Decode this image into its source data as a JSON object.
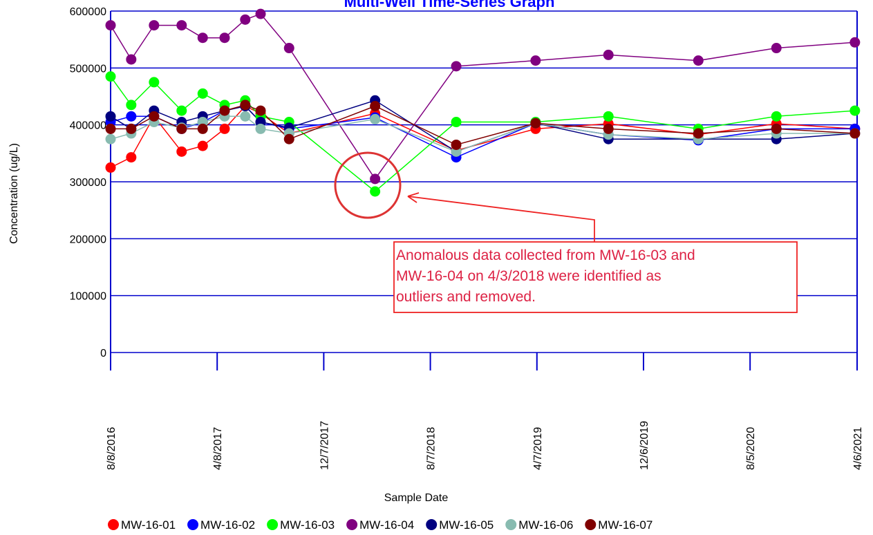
{
  "chart_data": {
    "type": "line",
    "title": "Multi-Well Time-Series Graph",
    "x_label": "Sample Date",
    "y_label": "Concentration (ug/L)",
    "x": [
      "8/8/2016",
      "9/24/2016",
      "11/15/2016",
      "1/17/2017",
      "3/6/2017",
      "4/25/2017",
      "6/11/2017",
      "7/16/2017",
      "9/19/2017",
      "4/3/2018",
      "10/5/2018",
      "4/4/2019",
      "9/17/2019",
      "4/9/2020",
      "10/4/2020",
      "4/1/2021"
    ],
    "xlim": [
      "8/8/2016",
      "4/6/2021"
    ],
    "xticks": [
      "8/8/2016",
      "4/8/2017",
      "12/7/2017",
      "8/7/2018",
      "4/7/2019",
      "12/6/2019",
      "8/5/2020",
      "4/6/2021"
    ],
    "ylim": [
      0,
      600000
    ],
    "yticks": [
      0,
      100000,
      200000,
      300000,
      400000,
      500000,
      600000
    ],
    "grid": true,
    "legend": "bottom",
    "series": [
      {
        "name": "MW-16-01",
        "color": "#ff0000",
        "values": [
          325000,
          343000,
          415000,
          353000,
          363000,
          393000,
          433000,
          420000,
          385000,
          420000,
          355000,
          393000,
          402000,
          383000,
          402000,
          393000
        ]
      },
      {
        "name": "MW-16-02",
        "color": "#0000ff",
        "values": [
          405000,
          415000,
          415000,
          393000,
          405000,
          425000,
          433000,
          405000,
          393000,
          413000,
          343000,
          403000,
          383000,
          373000,
          393000,
          393000
        ]
      },
      {
        "name": "MW-16-03",
        "color": "#00ff00",
        "values": [
          485000,
          435000,
          475000,
          425000,
          455000,
          435000,
          443000,
          415000,
          405000,
          283000,
          405000,
          405000,
          415000,
          393000,
          415000,
          425000
        ]
      },
      {
        "name": "MW-16-04",
        "color": "#800080",
        "values": [
          575000,
          515000,
          575000,
          575000,
          553000,
          553000,
          585000,
          595000,
          535000,
          305000,
          503000,
          513000,
          523000,
          513000,
          535000,
          545000
        ]
      },
      {
        "name": "MW-16-05",
        "color": "#000080",
        "values": [
          415000,
          393000,
          425000,
          405000,
          415000,
          425000,
          433000,
          405000,
          395000,
          443000,
          353000,
          403000,
          375000,
          375000,
          375000,
          385000
        ]
      },
      {
        "name": "MW-16-06",
        "color": "#88bbb0",
        "values": [
          375000,
          385000,
          405000,
          395000,
          405000,
          415000,
          415000,
          393000,
          385000,
          410000,
          353000,
          403000,
          383000,
          375000,
          385000,
          385000
        ]
      },
      {
        "name": "MW-16-07",
        "color": "#800000",
        "values": [
          393000,
          393000,
          415000,
          393000,
          393000,
          425000,
          435000,
          425000,
          375000,
          433000,
          365000,
          403000,
          393000,
          385000,
          393000,
          385000
        ]
      }
    ],
    "annotation": [
      "Anomalous data collected from MW-16-03 and",
      "MW-16-04 on 4/3/2018 were identified as",
      "outliers and removed."
    ]
  }
}
